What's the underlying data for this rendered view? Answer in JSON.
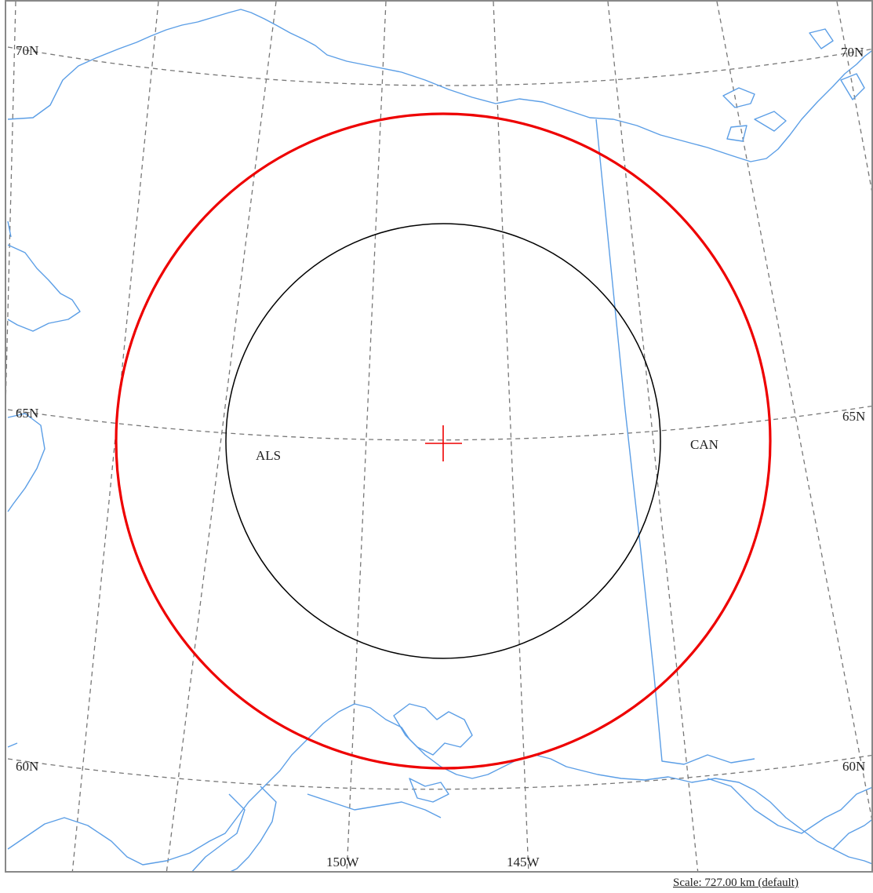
{
  "map": {
    "lat_labels_left": [
      "70N",
      "65N",
      "60N"
    ],
    "lat_labels_right": [
      "70N",
      "65N",
      "60N"
    ],
    "lon_labels": [
      "150W",
      "145W"
    ],
    "region_labels": [
      "ALS",
      "CAN"
    ],
    "scale_text": "Scale: 727.00 km (default)"
  },
  "colors": {
    "coastline": "#5b9ee6",
    "graticule": "#777777",
    "outer_ring": "#ee0000",
    "inner_ring": "#000000",
    "center_marker": "#ee0000",
    "frame": "#888888"
  },
  "icons": {
    "center_marker": "crosshair-icon"
  }
}
